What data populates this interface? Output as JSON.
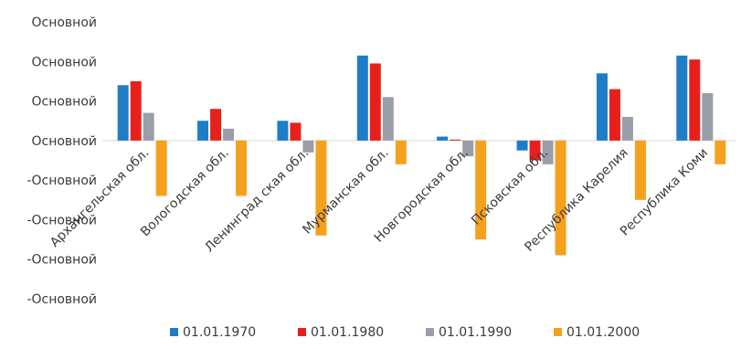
{
  "chart_data": {
    "type": "bar",
    "title": "",
    "xlabel": "",
    "ylabel": "",
    "y_tick_labels": [
      "Основной",
      "Основной",
      "Основной",
      "Основной",
      "-Основной",
      "-Основной",
      "-Основной",
      "-Основной"
    ],
    "y_tick_values": [
      6,
      4,
      2,
      0,
      -2,
      -4,
      -6,
      -8
    ],
    "ylim": [
      -8,
      6
    ],
    "grid": false,
    "legend_position": "bottom",
    "categories": [
      "Архангельская обл.",
      "Вологодская обл.",
      "Ленинград ская обл.",
      "Мурманская обл.",
      "Новгородская обл.",
      "Псковская обл.",
      "Республика Карелия",
      "Республика Коми"
    ],
    "series": [
      {
        "name": "01.01.1970",
        "color": "#1f7dc5",
        "values": [
          2.8,
          1.0,
          1.0,
          4.3,
          0.2,
          -0.5,
          3.4,
          4.3
        ]
      },
      {
        "name": "01.01.1980",
        "color": "#e8201c",
        "values": [
          3.0,
          1.6,
          0.9,
          3.9,
          0.05,
          -1.0,
          2.6,
          4.1
        ]
      },
      {
        "name": "01.01.1990",
        "color": "#9a9ea8",
        "values": [
          1.4,
          0.6,
          -0.6,
          2.2,
          -0.8,
          -1.2,
          1.2,
          2.4
        ]
      },
      {
        "name": "01.01.2000",
        "color": "#f5a11e",
        "values": [
          -2.8,
          -2.8,
          -4.8,
          -1.2,
          -5.0,
          -5.8,
          -3.0,
          -1.2
        ]
      }
    ]
  }
}
